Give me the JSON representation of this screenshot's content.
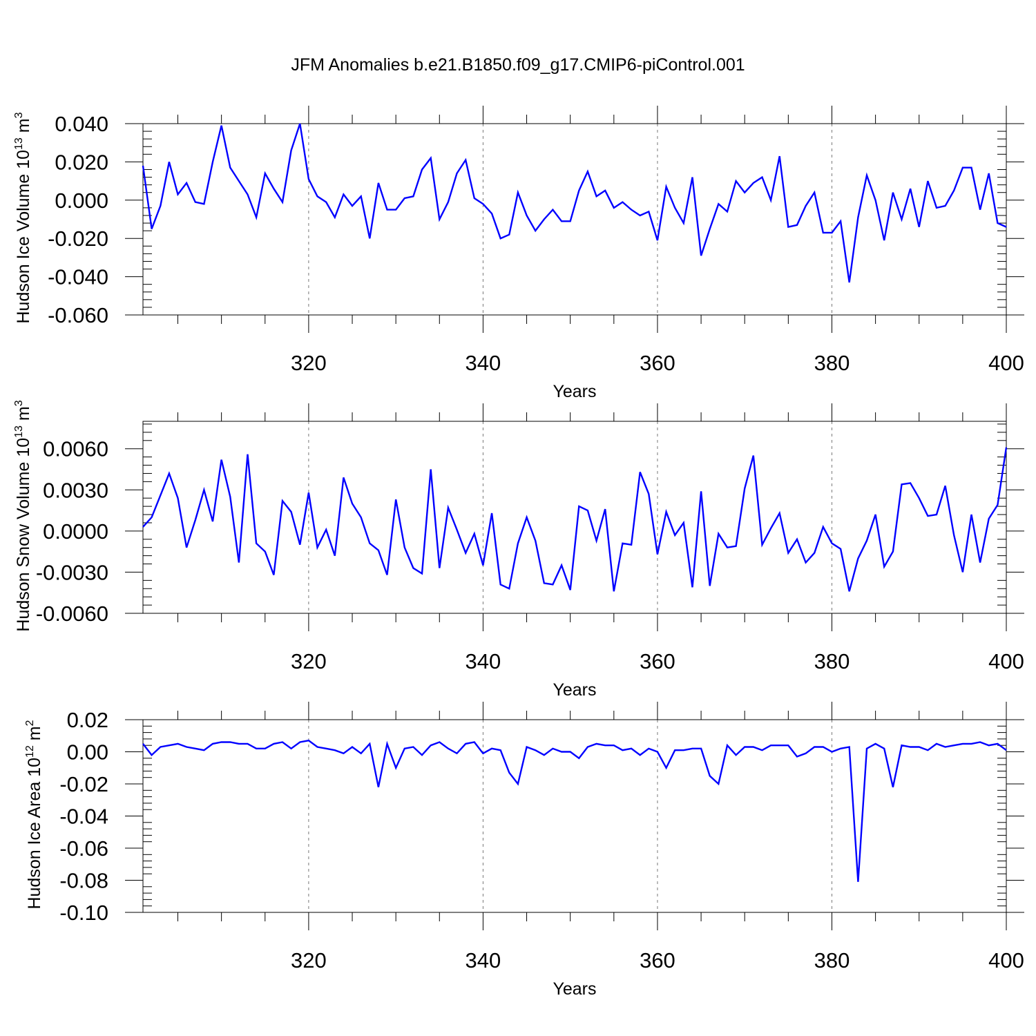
{
  "title": "JFM Anomalies b.e21.B1850.f09_g17.CMIP6-piControl.001",
  "colors": {
    "series": "#0000ff",
    "axis": "#000000",
    "grid": "#777777",
    "background": "#ffffff"
  },
  "chart_data": [
    {
      "type": "line",
      "xlabel": "Years",
      "ylabel": "Hudson Ice Volume 10",
      "ylabel_exponent": "13",
      "ylabel_unit": " m",
      "ylabel_unit_exponent": "3",
      "xlim": [
        301,
        400
      ],
      "ylim": [
        -0.06,
        0.04
      ],
      "xticks": [
        320,
        340,
        360,
        380,
        400
      ],
      "xtick_labels": [
        "320",
        "340",
        "360",
        "380",
        "400"
      ],
      "yticks": [
        -0.06,
        -0.04,
        -0.02,
        0.0,
        0.02,
        0.04
      ],
      "ytick_labels": [
        "-0.060",
        "-0.040",
        "-0.020",
        "0.000",
        "0.020",
        "0.040"
      ],
      "grid": "vertical dashed at x ticks",
      "x_start": 301,
      "values": [
        0.018,
        -0.015,
        -0.003,
        0.02,
        0.003,
        0.009,
        -0.001,
        -0.002,
        0.02,
        0.039,
        0.017,
        0.01,
        0.003,
        -0.009,
        0.014,
        0.006,
        -0.001,
        0.026,
        0.04,
        0.011,
        0.002,
        -0.001,
        -0.009,
        0.003,
        -0.003,
        0.002,
        -0.02,
        0.009,
        -0.005,
        -0.005,
        0.001,
        0.002,
        0.016,
        0.022,
        -0.01,
        -0.001,
        0.014,
        0.021,
        0.001,
        -0.002,
        -0.007,
        -0.02,
        -0.018,
        0.004,
        -0.008,
        -0.016,
        -0.01,
        -0.005,
        -0.011,
        -0.011,
        0.005,
        0.015,
        0.002,
        0.005,
        -0.004,
        -0.001,
        -0.005,
        -0.008,
        -0.006,
        -0.021,
        0.007,
        -0.004,
        -0.012,
        0.012,
        -0.029,
        -0.015,
        -0.002,
        -0.006,
        0.01,
        0.004,
        0.009,
        0.012,
        0.0,
        0.023,
        -0.014,
        -0.013,
        -0.003,
        0.004,
        -0.017,
        -0.017,
        -0.011,
        -0.043,
        -0.009,
        0.013,
        0.0,
        -0.021,
        0.004,
        -0.01,
        0.006,
        -0.014,
        0.01,
        -0.004,
        -0.003,
        0.005,
        0.017,
        0.017,
        -0.005,
        0.014,
        -0.012,
        -0.014
      ]
    },
    {
      "type": "line",
      "xlabel": "Years",
      "ylabel": "Hudson Snow Volume 10",
      "ylabel_exponent": "13",
      "ylabel_unit": " m",
      "ylabel_unit_exponent": "3",
      "xlim": [
        301,
        400
      ],
      "ylim": [
        -0.006,
        0.008
      ],
      "xticks": [
        320,
        340,
        360,
        380,
        400
      ],
      "xtick_labels": [
        "320",
        "340",
        "360",
        "380",
        "400"
      ],
      "yticks": [
        -0.006,
        -0.003,
        0.0,
        0.003,
        0.006
      ],
      "ytick_labels": [
        "-0.0060",
        "-0.0030",
        "0.0000",
        "0.0030",
        "0.0060"
      ],
      "grid": "vertical dashed at x ticks",
      "x_start": 301,
      "values": [
        0.0003,
        0.001,
        0.0026,
        0.0042,
        0.0024,
        -0.0012,
        0.0008,
        0.003,
        0.0007,
        0.0052,
        0.0025,
        -0.0023,
        0.0056,
        -0.0009,
        -0.0015,
        -0.0032,
        0.0022,
        0.0014,
        -0.001,
        0.0028,
        -0.0012,
        0.0001,
        -0.0018,
        0.0039,
        0.002,
        0.001,
        -0.0009,
        -0.0014,
        -0.0032,
        0.0023,
        -0.0012,
        -0.0027,
        -0.0031,
        0.0045,
        -0.0027,
        0.0017,
        0.0001,
        -0.0016,
        -0.0002,
        -0.0025,
        0.0013,
        -0.0039,
        -0.0042,
        -0.0009,
        0.001,
        -0.0007,
        -0.0038,
        -0.0039,
        -0.0025,
        -0.0043,
        0.0018,
        0.0015,
        -0.0007,
        0.0016,
        -0.0044,
        -0.0009,
        -0.001,
        0.0043,
        0.0027,
        -0.0017,
        0.0014,
        -0.0003,
        0.0006,
        -0.0041,
        0.0029,
        -0.004,
        -0.0002,
        -0.0012,
        -0.0011,
        0.0031,
        0.0055,
        -0.001,
        0.0002,
        0.0013,
        -0.0016,
        -0.0006,
        -0.0023,
        -0.0016,
        0.0003,
        -0.0009,
        -0.0013,
        -0.0044,
        -0.002,
        -0.0007,
        0.0012,
        -0.0026,
        -0.0015,
        0.0034,
        0.0035,
        0.0024,
        0.0011,
        0.0012,
        0.0033,
        -0.0003,
        -0.003,
        0.0012,
        -0.0023,
        0.0009,
        0.0019,
        0.0061
      ]
    },
    {
      "type": "line",
      "xlabel": "Years",
      "ylabel": "Hudson Ice Area 10",
      "ylabel_exponent": "12",
      "ylabel_unit": " m",
      "ylabel_unit_exponent": "2",
      "xlim": [
        301,
        400
      ],
      "ylim": [
        -0.1,
        0.02
      ],
      "xticks": [
        320,
        340,
        360,
        380,
        400
      ],
      "xtick_labels": [
        "320",
        "340",
        "360",
        "380",
        "400"
      ],
      "yticks": [
        -0.1,
        -0.08,
        -0.06,
        -0.04,
        -0.02,
        0.0,
        0.02
      ],
      "ytick_labels": [
        "-0.10",
        "-0.08",
        "-0.06",
        "-0.04",
        "-0.02",
        "0.00",
        "0.02"
      ],
      "grid": "vertical dashed at x ticks",
      "x_start": 301,
      "values": [
        0.005,
        -0.002,
        0.003,
        0.004,
        0.005,
        0.003,
        0.002,
        0.001,
        0.005,
        0.006,
        0.006,
        0.005,
        0.005,
        0.002,
        0.002,
        0.005,
        0.006,
        0.002,
        0.006,
        0.007,
        0.003,
        0.002,
        0.001,
        -0.001,
        0.003,
        -0.001,
        0.005,
        -0.022,
        0.005,
        -0.01,
        0.002,
        0.003,
        -0.002,
        0.004,
        0.006,
        0.002,
        -0.001,
        0.005,
        0.006,
        -0.001,
        0.002,
        0.001,
        -0.013,
        -0.02,
        0.003,
        0.001,
        -0.002,
        0.002,
        0.0,
        0.0,
        -0.004,
        0.003,
        0.005,
        0.004,
        0.004,
        0.001,
        0.002,
        -0.002,
        0.002,
        0.0,
        -0.01,
        0.001,
        0.001,
        0.002,
        0.002,
        -0.015,
        -0.02,
        0.004,
        -0.002,
        0.003,
        0.003,
        0.001,
        0.004,
        0.004,
        0.004,
        -0.003,
        -0.001,
        0.003,
        0.003,
        0.0,
        0.002,
        0.003,
        -0.081,
        0.002,
        0.005,
        0.002,
        -0.022,
        0.004,
        0.003,
        0.003,
        0.001,
        0.005,
        0.003,
        0.004,
        0.005,
        0.005,
        0.006,
        0.004,
        0.005,
        0.001
      ]
    }
  ]
}
